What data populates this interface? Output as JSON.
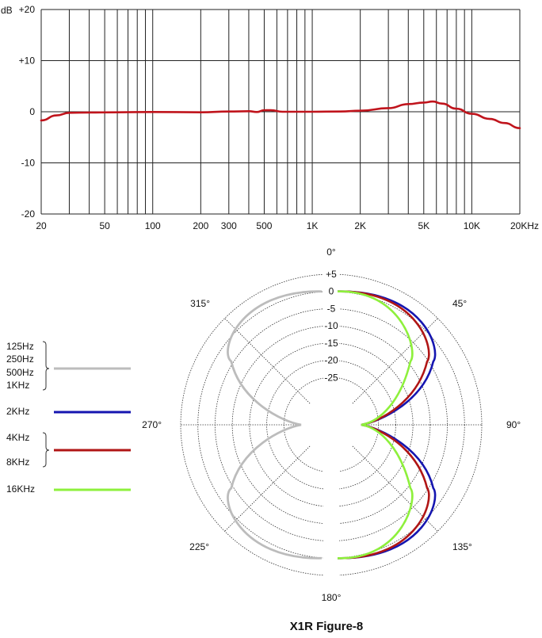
{
  "chart_data": [
    {
      "type": "line",
      "x_scale": "log",
      "xlim": [
        20,
        20000
      ],
      "ylim": [
        -20,
        20
      ],
      "grid": true,
      "ylabel": "dB",
      "x_tick_labels": [
        {
          "value": 20,
          "label": "20"
        },
        {
          "value": 50,
          "label": "50"
        },
        {
          "value": 100,
          "label": "100"
        },
        {
          "value": 200,
          "label": "200"
        },
        {
          "value": 300,
          "label": "300"
        },
        {
          "value": 500,
          "label": "500"
        },
        {
          "value": 1000,
          "label": "1K"
        },
        {
          "value": 2000,
          "label": "2K"
        },
        {
          "value": 5000,
          "label": "5K"
        },
        {
          "value": 10000,
          "label": "10K"
        },
        {
          "value": 20000,
          "label": "20KHz"
        }
      ],
      "y_tick_labels": [
        {
          "value": 20,
          "label": "+20"
        },
        {
          "value": 10,
          "label": "+10"
        },
        {
          "value": 0,
          "label": "0"
        },
        {
          "value": -10,
          "label": "-10"
        },
        {
          "value": -20,
          "label": "-20"
        }
      ],
      "series": [
        {
          "color": "#c0141c",
          "points": [
            [
              20,
              -1.7
            ],
            [
              25,
              -0.7
            ],
            [
              30,
              -0.2
            ],
            [
              40,
              -0.15
            ],
            [
              60,
              -0.1
            ],
            [
              100,
              -0.05
            ],
            [
              200,
              -0.1
            ],
            [
              300,
              0.05
            ],
            [
              400,
              0.1
            ],
            [
              450,
              -0.05
            ],
            [
              500,
              0.3
            ],
            [
              550,
              0.3
            ],
            [
              650,
              0.0
            ],
            [
              1000,
              0.0
            ],
            [
              1500,
              0.05
            ],
            [
              2000,
              0.2
            ],
            [
              3000,
              0.7
            ],
            [
              4000,
              1.5
            ],
            [
              5000,
              1.8
            ],
            [
              5700,
              2.0
            ],
            [
              6500,
              1.6
            ],
            [
              8000,
              0.6
            ],
            [
              10000,
              -0.4
            ],
            [
              13000,
              -1.4
            ],
            [
              16000,
              -2.2
            ],
            [
              20000,
              -3.2
            ]
          ]
        }
      ]
    },
    {
      "type": "polar",
      "rlim": [
        -30,
        5
      ],
      "r_tick_labels": [
        "+5",
        "0",
        "-5",
        "-10",
        "-15",
        "-20",
        "-25"
      ],
      "angle_labels": [
        "0°",
        "45°",
        "90°",
        "135°",
        "180°",
        "225°",
        "270°",
        "315°"
      ],
      "legend": [
        {
          "labels": [
            "125Hz",
            "250Hz",
            "500Hz",
            "1KHz"
          ],
          "color": "#bcbcbc"
        },
        {
          "labels": [
            "2KHz"
          ],
          "color": "#1515b0"
        },
        {
          "labels": [
            "4KHz",
            "8KHz"
          ],
          "color": "#b01515"
        },
        {
          "labels": [
            "16KHz"
          ],
          "color": "#8ef03c"
        }
      ],
      "series": [
        {
          "name": "125Hz / 250Hz / 500Hz / 1KHz",
          "color": "#bcbcbc",
          "pattern": "figure-8",
          "side": "left",
          "peak_db": 0
        },
        {
          "name": "2KHz",
          "color": "#1515b0",
          "pattern": "figure-8",
          "side": "right",
          "peak_db": 0,
          "bulge": 1.16
        },
        {
          "name": "4KHz / 8KHz",
          "color": "#b01515",
          "pattern": "figure-8",
          "side": "right",
          "peak_db": 0,
          "bulge": 1.09
        },
        {
          "name": "16KHz",
          "color": "#8ef03c",
          "pattern": "figure-8",
          "side": "right",
          "peak_db": 0,
          "bulge": 0.9
        }
      ],
      "title": "X1R Figure-8"
    }
  ]
}
